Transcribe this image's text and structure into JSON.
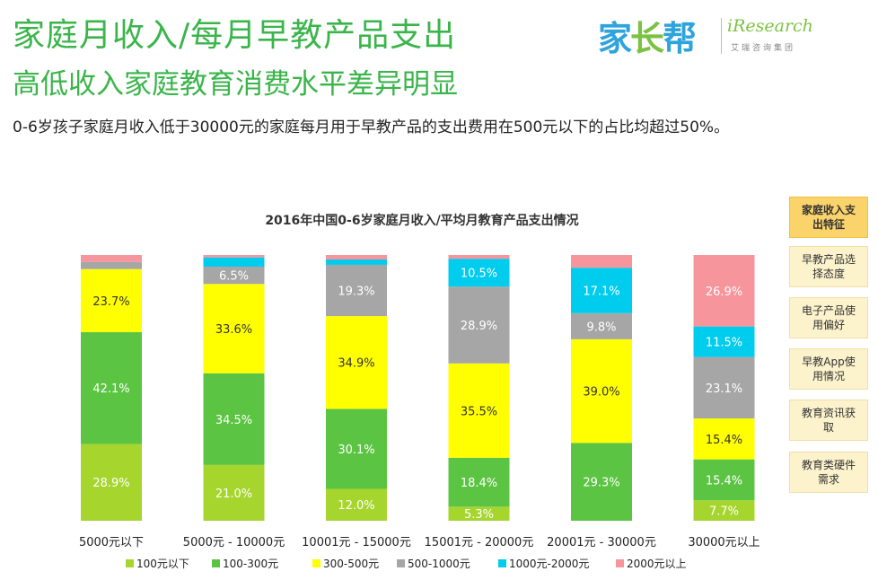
{
  "header": {
    "title_line1": "家庭月收入/每月早教产品支出",
    "title_line2": "高低收入家庭教育消费水平差异明显",
    "description": "0-6岁孩子家庭月收入低于30000元的家庭每月用于早教产品的支出费用在500元以下的占比均超过50%。"
  },
  "logos": {
    "jiazhangbang": [
      "家",
      "长",
      "帮"
    ],
    "iresearch": "iResearch",
    "iresearch_sub": "艾瑞咨询集团"
  },
  "sidebar": {
    "items": [
      {
        "label": "家庭收入支出特征",
        "active": true
      },
      {
        "label": "早教产品选择态度",
        "active": false
      },
      {
        "label": "电子产品使用偏好",
        "active": false
      },
      {
        "label": "早教App使用情况",
        "active": false
      },
      {
        "label": "教育资讯获取",
        "active": false
      },
      {
        "label": "教育类硬件需求",
        "active": false
      }
    ]
  },
  "chart_data": {
    "type": "bar",
    "stacked": true,
    "percent_stacked": true,
    "title": "2016年中国0-6岁家庭月收入/平均月教育产品支出情况",
    "categories": [
      "5000元以下",
      "5000元 - 10000元",
      "10001元 - 15000元",
      "15001元 - 20000元",
      "20001元 - 30000元",
      "30000元以上"
    ],
    "series": [
      {
        "name": "100元以下",
        "color": "#a6d52e",
        "values": [
          28.9,
          21.0,
          12.0,
          5.3,
          0,
          7.7
        ]
      },
      {
        "name": "100-300元",
        "color": "#5cc443",
        "values": [
          42.1,
          34.5,
          30.1,
          18.4,
          29.3,
          15.4
        ]
      },
      {
        "name": "300-500元",
        "color": "#ffff00",
        "values": [
          23.7,
          33.6,
          34.9,
          35.5,
          39.0,
          15.4
        ]
      },
      {
        "name": "500-1000元",
        "color": "#a6a6a6",
        "values": [
          2.7,
          6.5,
          19.3,
          28.9,
          9.8,
          23.1
        ]
      },
      {
        "name": "1000元-2000元",
        "color": "#00ccee",
        "values": [
          0.0,
          3.5,
          2.0,
          10.5,
          17.1,
          11.5
        ]
      },
      {
        "name": "2000元以上",
        "color": "#f7959c",
        "values": [
          2.6,
          0.9,
          1.7,
          1.4,
          4.8,
          26.9
        ]
      }
    ],
    "data_labels_shown_from": 5,
    "ylim": [
      0,
      100
    ],
    "legend": "bottom"
  }
}
